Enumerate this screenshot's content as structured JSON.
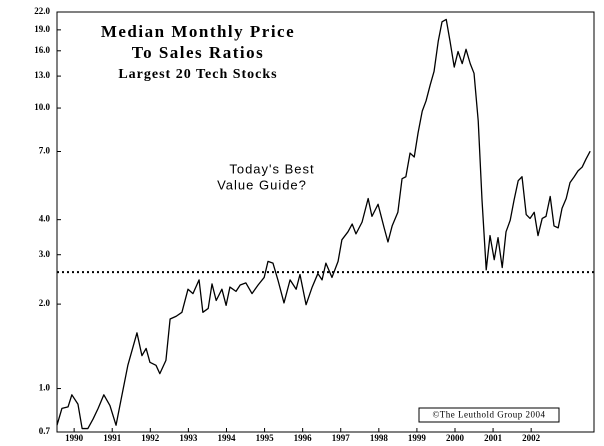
{
  "chart_data": {
    "type": "line",
    "title": [
      "Median Monthly Price",
      "To Sales Ratios"
    ],
    "subtitle": "Largest 20 Tech Stocks",
    "annotation": [
      "Today's Best",
      "Value Guide?"
    ],
    "footer": "©The Leuthold Group 2004",
    "color": "#000000",
    "log_scale_y": true,
    "reference_line": {
      "value": 2.6,
      "style": "dotted"
    },
    "xlim": [
      1989.55,
      2003.65
    ],
    "xticks": [
      1990,
      1991,
      1992,
      1993,
      1994,
      1995,
      1996,
      1997,
      1998,
      1999,
      2000,
      2001,
      2002
    ],
    "ylim": [
      0.7,
      22
    ],
    "yticks": [
      0.7,
      {
        "value": 1,
        "label": "1.0"
      },
      {
        "value": 2,
        "label": "2.0"
      },
      {
        "value": 3,
        "label": "3.0"
      },
      {
        "value": 4,
        "label": "4.0"
      },
      {
        "value": 7,
        "label": "7.0"
      },
      {
        "value": 10,
        "label": "10.0"
      },
      {
        "value": 13,
        "label": "13.0"
      },
      {
        "value": 16,
        "label": "16.0"
      },
      {
        "value": 19,
        "label": "19.0"
      },
      {
        "value": 22,
        "label": "22.0"
      }
    ],
    "x": [
      1989.55,
      1989.68,
      1989.84,
      1989.94,
      1990.1,
      1990.21,
      1990.36,
      1990.5,
      1990.63,
      1990.78,
      1990.94,
      1991.1,
      1991.23,
      1991.41,
      1991.65,
      1991.78,
      1991.89,
      1991.99,
      1992.15,
      1992.25,
      1992.41,
      1992.52,
      1992.68,
      1992.83,
      1992.99,
      1993.12,
      1993.28,
      1993.38,
      1993.52,
      1993.62,
      1993.73,
      1993.88,
      1993.99,
      1994.09,
      1994.25,
      1994.36,
      1994.51,
      1994.67,
      1994.83,
      1994.99,
      1995.09,
      1995.22,
      1995.35,
      1995.51,
      1995.67,
      1995.83,
      1995.93,
      1996.09,
      1996.25,
      1996.4,
      1996.51,
      1996.61,
      1996.77,
      1996.93,
      1997.03,
      1997.19,
      1997.3,
      1997.4,
      1997.56,
      1997.72,
      1997.82,
      1997.98,
      1998.14,
      1998.24,
      1998.35,
      1998.5,
      1998.61,
      1998.71,
      1998.82,
      1998.93,
      1999.03,
      1999.14,
      1999.24,
      1999.35,
      1999.45,
      1999.56,
      1999.66,
      1999.77,
      1999.87,
      1999.98,
      2000.08,
      2000.19,
      2000.29,
      2000.4,
      2000.5,
      2000.61,
      2000.71,
      2000.82,
      2000.92,
      2001.03,
      2001.13,
      2001.24,
      2001.34,
      2001.45,
      2001.55,
      2001.66,
      2001.76,
      2001.87,
      2001.97,
      2002.08,
      2002.18,
      2002.29,
      2002.39,
      2002.5,
      2002.6,
      2002.71,
      2002.81,
      2002.92,
      2003.02,
      2003.13,
      2003.23,
      2003.34,
      2003.44,
      2003.55
    ],
    "values": [
      0.74,
      0.85,
      0.86,
      0.95,
      0.88,
      0.72,
      0.72,
      0.78,
      0.85,
      0.95,
      0.87,
      0.74,
      0.91,
      1.21,
      1.58,
      1.31,
      1.39,
      1.24,
      1.21,
      1.13,
      1.26,
      1.77,
      1.81,
      1.87,
      2.26,
      2.18,
      2.44,
      1.87,
      1.93,
      2.36,
      2.06,
      2.26,
      1.98,
      2.3,
      2.22,
      2.34,
      2.38,
      2.18,
      2.34,
      2.49,
      2.84,
      2.8,
      2.44,
      2.02,
      2.44,
      2.26,
      2.55,
      1.99,
      2.3,
      2.57,
      2.44,
      2.8,
      2.49,
      2.84,
      3.39,
      3.62,
      3.86,
      3.56,
      3.92,
      4.76,
      4.11,
      4.54,
      3.74,
      3.33,
      3.8,
      4.25,
      5.6,
      5.69,
      6.91,
      6.69,
      8.15,
      9.75,
      10.6,
      12.1,
      13.5,
      17.3,
      20.3,
      20.7,
      17.3,
      14.0,
      15.9,
      14.4,
      16.2,
      14.4,
      13.3,
      9.0,
      4.69,
      2.65,
      3.51,
      2.88,
      3.45,
      2.7,
      3.62,
      3.98,
      4.69,
      5.51,
      5.69,
      4.17,
      4.04,
      4.25,
      3.51,
      4.04,
      4.11,
      4.84,
      3.8,
      3.74,
      4.39,
      4.76,
      5.42,
      5.69,
      5.97,
      6.16,
      6.58,
      7.02
    ]
  }
}
